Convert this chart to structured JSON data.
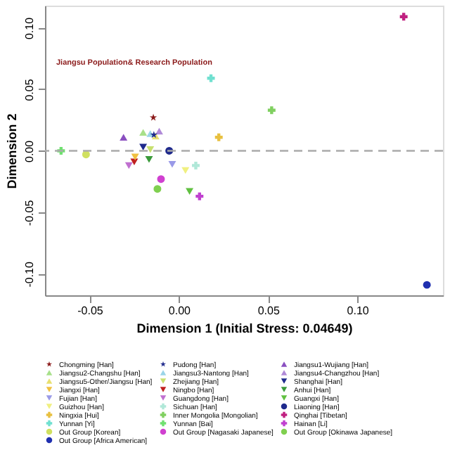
{
  "chart_data": {
    "type": "scatter",
    "xlabel": "Dimension 1 (Initial Stress: 0.04649)",
    "ylabel": "Dimension 2",
    "xlim": [
      -0.075,
      0.148
    ],
    "ylim": [
      -0.1175,
      0.118
    ],
    "xticks": [
      {
        "value": -0.05,
        "label": "-0.05"
      },
      {
        "value": 0,
        "label": "0.00"
      },
      {
        "value": 0.05,
        "label": "0.05"
      },
      {
        "value": 0.1,
        "label": "0.10"
      }
    ],
    "yticks": [
      {
        "value": -0.1,
        "label": "-0.10"
      },
      {
        "value": -0.05,
        "label": "-0.05"
      },
      {
        "value": 0,
        "label": "0.00"
      },
      {
        "value": 0.05,
        "label": "0.05"
      },
      {
        "value": 0.1,
        "label": "0.10"
      }
    ],
    "grid": false,
    "legend": "bottom",
    "ref_lines": [
      {
        "axis": "y",
        "value": 0,
        "color": "#aaaaaa",
        "line_style": "dashed"
      }
    ],
    "annotations": [
      "Jiangsu Population& Research Population"
    ],
    "series": [
      {
        "name": "Chongming [Han]",
        "color": "#8b1a1a",
        "marker": "star",
        "x": [
          -0.0143
        ],
        "values": [
          0.027
        ]
      },
      {
        "name": "Pudong [Han]",
        "color": "#1f2a8c",
        "marker": "star",
        "x": [
          -0.014
        ],
        "values": [
          0.013
        ]
      },
      {
        "name": "Jiangsu1-Wujiang [Han]",
        "color": "#8a4fc0",
        "marker": "triangle",
        "x": [
          -0.031
        ],
        "values": [
          0.011
        ]
      },
      {
        "name": "Jiangsu2-Changshu [Han]",
        "color": "#a8e08a",
        "marker": "triangle",
        "x": [
          -0.02
        ],
        "values": [
          0.015
        ]
      },
      {
        "name": "Jiangsu3-Nantong [Han]",
        "color": "#9ad4e8",
        "marker": "triangle",
        "x": [
          -0.016
        ],
        "values": [
          0.014
        ]
      },
      {
        "name": "Jiangsu4-Changzhou [Han]",
        "color": "#b08ad8",
        "marker": "triangle",
        "x": [
          -0.011
        ],
        "values": [
          0.016
        ]
      },
      {
        "name": "Jiangsu5-Other/Jiangsu [Han]",
        "color": "#e8e070",
        "marker": "triangle",
        "x": [
          -0.013
        ],
        "values": [
          0.012
        ]
      },
      {
        "name": "Zhejiang [Han]",
        "color": "#c8e070",
        "marker": "triangle-down",
        "x": [
          -0.016
        ],
        "values": [
          0.001
        ]
      },
      {
        "name": "Shanghai [Han]",
        "color": "#1f2a8c",
        "marker": "triangle-down",
        "x": [
          -0.02
        ],
        "values": [
          0.003
        ]
      },
      {
        "name": "Jiangxi [Han]",
        "color": "#f0c040",
        "marker": "triangle-down",
        "x": [
          -0.0245
        ],
        "values": [
          -0.005
        ]
      },
      {
        "name": "Ningbo [Han]",
        "color": "#c02020",
        "marker": "triangle-down",
        "x": [
          -0.025
        ],
        "values": [
          -0.009
        ]
      },
      {
        "name": "Anhui [Han]",
        "color": "#3a9a3a",
        "marker": "triangle-down",
        "x": [
          -0.0167
        ],
        "values": [
          -0.007
        ]
      },
      {
        "name": "Fujian [Han]",
        "color": "#9a9ae8",
        "marker": "triangle-down",
        "x": [
          -0.0037
        ],
        "values": [
          -0.011
        ]
      },
      {
        "name": "Guangdong [Han]",
        "color": "#c070d0",
        "marker": "triangle-down",
        "x": [
          -0.028
        ],
        "values": [
          -0.012
        ]
      },
      {
        "name": "Guangxi [Han]",
        "color": "#60c040",
        "marker": "triangle-down",
        "x": [
          0.006
        ],
        "values": [
          -0.033
        ]
      },
      {
        "name": "Guizhou [Han]",
        "color": "#f0f080",
        "marker": "triangle-down",
        "x": [
          0.0037
        ],
        "values": [
          -0.016
        ]
      },
      {
        "name": "Sichuan [Han]",
        "color": "#b0e8d8",
        "marker": "cross",
        "x": [
          0.0095
        ],
        "values": [
          -0.012
        ]
      },
      {
        "name": "Liaoning [Han]",
        "color": "#1f2a8c",
        "marker": "circle",
        "x": [
          -0.0054
        ],
        "values": [
          0.0
        ]
      },
      {
        "name": "Ningxia [Hui]",
        "color": "#e8c040",
        "marker": "cross",
        "x": [
          0.0224
        ],
        "values": [
          0.011
        ]
      },
      {
        "name": "Inner Mongolia [Mongolian]",
        "color": "#80d060",
        "marker": "cross",
        "x": [
          0.052
        ],
        "values": [
          0.033
        ]
      },
      {
        "name": "Qinghai [Tibetan]",
        "color": "#c02080",
        "marker": "cross",
        "x": [
          0.126
        ],
        "values": [
          0.109
        ]
      },
      {
        "name": "Yunnan [Yi]",
        "color": "#70e0d0",
        "marker": "cross",
        "x": [
          0.018
        ],
        "values": [
          0.059
        ]
      },
      {
        "name": "Yunnan [Bai]",
        "color": "#70e070",
        "marker": "cross",
        "x": [
          -0.066
        ],
        "values": [
          0.0
        ]
      },
      {
        "name": "Hainan [Li]",
        "color": "#c040d0",
        "marker": "cross",
        "x": [
          0.0116
        ],
        "values": [
          -0.037
        ]
      },
      {
        "name": "Out Group [Korean]",
        "color": "#d0e060",
        "marker": "circle",
        "x": [
          -0.052
        ],
        "values": [
          -0.003
        ]
      },
      {
        "name": "Out Group [Nagasaki Japanese]",
        "color": "#d040d0",
        "marker": "circle",
        "x": [
          -0.01
        ],
        "values": [
          -0.023
        ]
      },
      {
        "name": "Out Group [Okinawa Japanese]",
        "color": "#80d050",
        "marker": "circle",
        "x": [
          -0.012
        ],
        "values": [
          -0.031
        ]
      },
      {
        "name": "Out Group [Africa American]",
        "color": "#2030b0",
        "marker": "circle",
        "x": [
          0.139
        ],
        "values": [
          -0.109
        ]
      }
    ]
  }
}
